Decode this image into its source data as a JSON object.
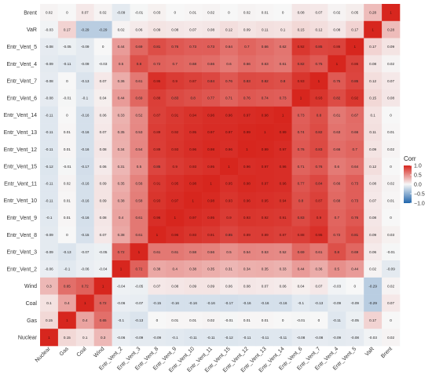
{
  "chart_data": {
    "type": "heatmap",
    "title": "",
    "xlabel": "",
    "ylabel": "",
    "legend": {
      "title": "Corr",
      "ticks": [
        1.0,
        0.5,
        0.0,
        -0.5,
        -1.0
      ],
      "tick_labels": [
        "1.0",
        "0.5",
        "0.0",
        "−0.5",
        "−1.0"
      ],
      "placement": "right"
    },
    "colors": {
      "negative": "#2166ac",
      "mid": "#f7f7f7",
      "positive": "#d7261e",
      "background": "#ffffff"
    },
    "variables": [
      "Nuclear",
      "Gas",
      "Coal",
      "Wind",
      "Entr_Vent_2",
      "Entr_Vent_3",
      "Entr_Vent_8",
      "Entr_Vent_9",
      "Entr_Vent_10",
      "Entr_Vent_11",
      "Entr_Vent_15",
      "Entr_Vent_12",
      "Entr_Vent_13",
      "Entr_Vent_14",
      "Entr_Vent_6",
      "Entr_Vent_7",
      "Entr_Vent_4",
      "Entr_Vent_5",
      "VaR",
      "Brent"
    ],
    "rows_top_to_bottom": [
      "Brent",
      "VaR",
      "Entr_Vent_5",
      "Entr_Vent_4",
      "Entr_Vent_7",
      "Entr_Vent_6",
      "Entr_Vent_14",
      "Entr_Vent_13",
      "Entr_Vent_12",
      "Entr_Vent_15",
      "Entr_Vent_11",
      "Entr_Vent_10",
      "Entr_Vent_9",
      "Entr_Vent_8",
      "Entr_Vent_3",
      "Entr_Vent_2",
      "Wind",
      "Coal",
      "Gas",
      "Nuclear"
    ],
    "matrix": [
      [
        0.02,
        0,
        0.07,
        0.02,
        -0.09,
        -0.01,
        0.03,
        0,
        0.01,
        0.02,
        0,
        0.02,
        0.01,
        0,
        0.08,
        0.07,
        0.02,
        0.05,
        0.28,
        1
      ],
      [
        -0.03,
        0.17,
        -0.29,
        -0.29,
        0.02,
        0.06,
        0.09,
        0.08,
        0.07,
        0.08,
        0.12,
        0.09,
        0.11,
        0.1,
        0.15,
        0.12,
        0.08,
        0.17,
        1,
        0.28
      ],
      [
        -0.08,
        -0.05,
        -0.09,
        0,
        0.44,
        0.69,
        0.81,
        0.76,
        0.73,
        0.73,
        0.64,
        0.7,
        0.66,
        0.62,
        0.92,
        0.85,
        0.86,
        1,
        0.17,
        0.09
      ],
      [
        -0.09,
        -0.11,
        -0.09,
        -0.03,
        0.5,
        0.8,
        0.72,
        0.7,
        0.68,
        0.66,
        0.6,
        0.66,
        0.63,
        0.61,
        0.82,
        0.75,
        1,
        0.86,
        0.08,
        0.02
      ],
      [
        -0.08,
        0,
        -0.13,
        0.07,
        0.36,
        0.61,
        0.95,
        0.9,
        0.87,
        0.84,
        0.76,
        0.83,
        0.82,
        0.8,
        0.93,
        1,
        0.75,
        0.85,
        0.12,
        0.07
      ],
      [
        -0.08,
        -0.01,
        -0.1,
        0.04,
        0.44,
        0.69,
        0.88,
        0.83,
        0.8,
        0.77,
        0.71,
        0.76,
        0.74,
        0.73,
        1,
        0.93,
        0.82,
        0.92,
        0.15,
        0.08
      ],
      [
        -0.11,
        0,
        -0.16,
        0.06,
        0.33,
        0.52,
        0.87,
        0.91,
        0.94,
        0.96,
        0.96,
        0.97,
        0.98,
        1,
        0.73,
        0.8,
        0.61,
        0.67,
        0.1,
        0
      ],
      [
        -0.11,
        0.01,
        -0.16,
        0.07,
        0.35,
        0.53,
        0.89,
        0.92,
        0.95,
        0.97,
        0.97,
        0.99,
        1,
        0.99,
        0.74,
        0.82,
        0.63,
        0.66,
        0.11,
        0.01
      ],
      [
        -0.11,
        0.01,
        -0.16,
        0.08,
        0.34,
        0.54,
        0.89,
        0.93,
        0.96,
        0.98,
        0.96,
        1,
        0.99,
        0.97,
        0.76,
        0.83,
        0.66,
        0.7,
        0.09,
        0.02
      ],
      [
        -0.12,
        -0.01,
        -0.17,
        0.06,
        0.31,
        0.5,
        0.85,
        0.9,
        0.93,
        0.95,
        1,
        0.96,
        0.97,
        0.96,
        0.71,
        0.76,
        0.6,
        0.64,
        0.12,
        0
      ],
      [
        -0.11,
        0.02,
        -0.16,
        0.09,
        0.35,
        0.56,
        0.91,
        0.95,
        0.98,
        1,
        0.95,
        0.98,
        0.97,
        0.96,
        0.77,
        0.84,
        0.66,
        0.73,
        0.08,
        0.02
      ],
      [
        -0.11,
        0.01,
        -0.16,
        0.09,
        0.38,
        0.58,
        0.93,
        0.97,
        1,
        0.98,
        0.93,
        0.96,
        0.95,
        0.94,
        0.8,
        0.87,
        0.68,
        0.73,
        0.07,
        0.01
      ],
      [
        -0.1,
        0.01,
        -0.16,
        0.08,
        0.4,
        0.61,
        0.96,
        1,
        0.97,
        0.95,
        0.9,
        0.93,
        0.92,
        0.91,
        0.83,
        0.9,
        0.7,
        0.76,
        0.08,
        0
      ],
      [
        -0.09,
        0,
        -0.15,
        0.07,
        0.38,
        0.61,
        1,
        0.96,
        0.93,
        0.91,
        0.85,
        0.89,
        0.89,
        0.87,
        0.88,
        0.95,
        0.72,
        0.81,
        0.09,
        0.03
      ],
      [
        -0.09,
        -0.13,
        -0.07,
        -0.05,
        0.72,
        1,
        0.61,
        0.61,
        0.58,
        0.56,
        0.5,
        0.54,
        0.53,
        0.52,
        0.69,
        0.61,
        0.8,
        0.69,
        0.06,
        -0.01
      ],
      [
        -0.06,
        -0.1,
        -0.06,
        -0.04,
        1,
        0.72,
        0.38,
        0.4,
        0.38,
        0.35,
        0.31,
        0.34,
        0.35,
        0.33,
        0.44,
        0.36,
        0.5,
        0.44,
        0.02,
        -0.09
      ],
      [
        0.3,
        0.65,
        0.72,
        1,
        -0.04,
        -0.05,
        0.07,
        0.08,
        0.09,
        0.09,
        0.06,
        0.08,
        0.07,
        0.06,
        0.04,
        0.07,
        -0.03,
        0,
        -0.29,
        0.02
      ],
      [
        0.1,
        0.4,
        1,
        0.72,
        -0.06,
        -0.07,
        -0.15,
        -0.16,
        -0.16,
        -0.16,
        -0.17,
        -0.16,
        -0.16,
        -0.16,
        -0.1,
        -0.13,
        -0.09,
        -0.09,
        -0.29,
        0.07
      ],
      [
        0.15,
        1,
        0.4,
        0.65,
        -0.1,
        -0.13,
        0,
        0.01,
        0.01,
        0.02,
        -0.01,
        0.01,
        0.01,
        0,
        -0.01,
        0,
        -0.11,
        -0.05,
        0.17,
        0
      ],
      [
        1,
        0.15,
        0.1,
        0.3,
        -0.06,
        -0.09,
        -0.09,
        -0.1,
        -0.11,
        -0.11,
        -0.12,
        -0.11,
        -0.11,
        -0.11,
        -0.08,
        -0.08,
        -0.09,
        -0.08,
        -0.03,
        0.02
      ]
    ]
  }
}
